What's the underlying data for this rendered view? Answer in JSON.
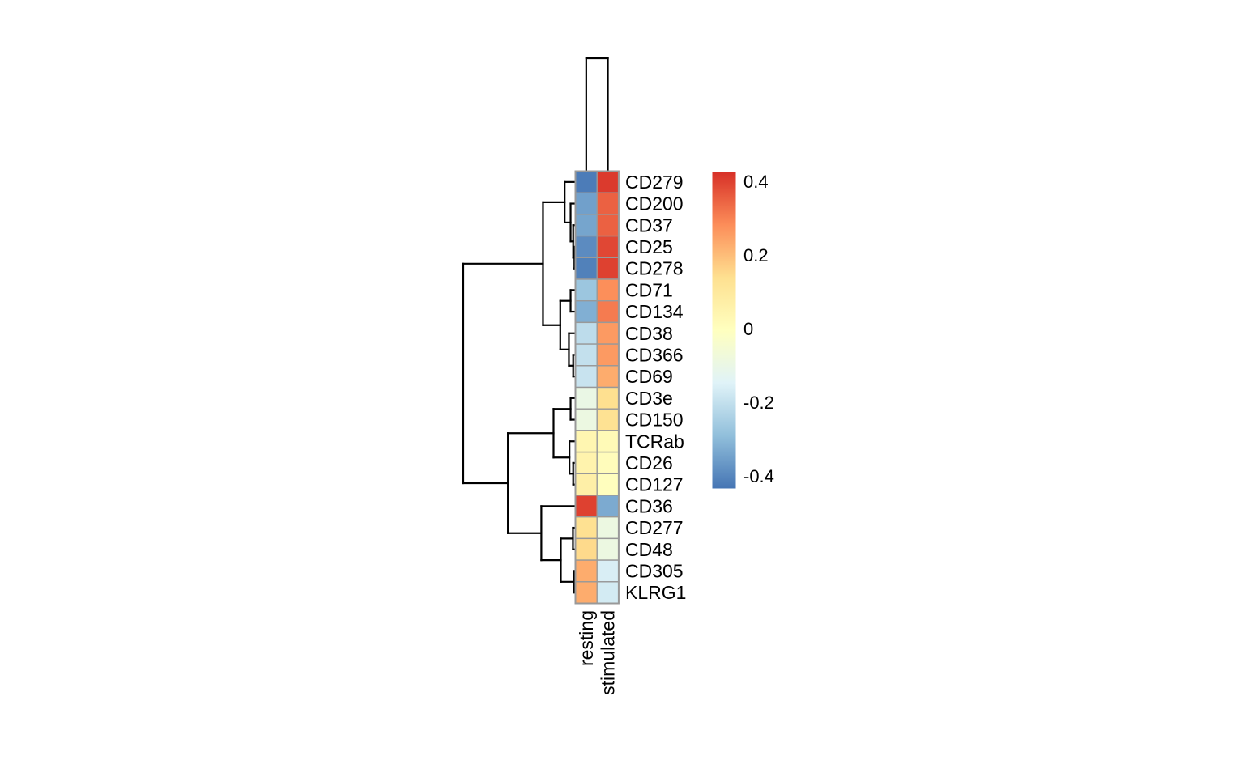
{
  "figure": {
    "background": "#ffffff",
    "description": "Clustered heatmap (pheatmap style) with row and column dendrograms and a vertical color legend"
  },
  "chart_data": {
    "type": "heatmap",
    "title": "",
    "columns": [
      "resting",
      "stimulated"
    ],
    "rows": [
      {
        "label": "CD279",
        "values": [
          -0.42,
          0.41
        ]
      },
      {
        "label": "CD200",
        "values": [
          -0.35,
          0.35
        ]
      },
      {
        "label": "CD37",
        "values": [
          -0.34,
          0.35
        ]
      },
      {
        "label": "CD25",
        "values": [
          -0.39,
          0.39
        ]
      },
      {
        "label": "CD278",
        "values": [
          -0.41,
          0.4
        ]
      },
      {
        "label": "CD71",
        "values": [
          -0.27,
          0.28
        ]
      },
      {
        "label": "CD134",
        "values": [
          -0.32,
          0.31
        ]
      },
      {
        "label": "CD38",
        "values": [
          -0.21,
          0.26
        ]
      },
      {
        "label": "CD366",
        "values": [
          -0.2,
          0.26
        ]
      },
      {
        "label": "CD69",
        "values": [
          -0.19,
          0.23
        ]
      },
      {
        "label": "CD3e",
        "values": [
          -0.1,
          0.14
        ]
      },
      {
        "label": "CD150",
        "values": [
          -0.09,
          0.13
        ]
      },
      {
        "label": "TCRab",
        "values": [
          0.04,
          0.02
        ]
      },
      {
        "label": "CD26",
        "values": [
          0.05,
          0.01
        ]
      },
      {
        "label": "CD127",
        "values": [
          0.07,
          0.0
        ]
      },
      {
        "label": "CD36",
        "values": [
          0.4,
          -0.33
        ]
      },
      {
        "label": "CD277",
        "values": [
          0.135,
          -0.09
        ]
      },
      {
        "label": "CD48",
        "values": [
          0.15,
          -0.09
        ]
      },
      {
        "label": "CD305",
        "values": [
          0.23,
          -0.16
        ]
      },
      {
        "label": "KLRG1",
        "values": [
          0.23,
          -0.17
        ]
      }
    ],
    "colormap": {
      "name": "RdYlBu-reversed",
      "colors": [
        "#4575B4",
        "#91BFDB",
        "#E0F3F8",
        "#FFFFBF",
        "#FEE090",
        "#FC8D59",
        "#D73027"
      ],
      "domain": [
        -0.433,
        0.426
      ]
    },
    "legend": {
      "position": "right",
      "ticks": [
        {
          "value": 0.4,
          "label": "0.4"
        },
        {
          "value": 0.2,
          "label": "0.2"
        },
        {
          "value": 0.0,
          "label": "0"
        },
        {
          "value": -0.2,
          "label": "-0.2"
        },
        {
          "value": -0.4,
          "label": "-0.4"
        }
      ]
    },
    "cell_border_color": "#999999",
    "dendrogram_color": "#000000",
    "row_dendrogram": {
      "h": 1.0,
      "children": [
        {
          "h": 0.289,
          "children": [
            {
              "h": 0.096,
              "children": [
                {
                  "leaf": "CD279"
                },
                {
                  "h": 0.043,
                  "children": [
                    {
                      "leaf": "CD200"
                    },
                    {
                      "h": 0.02,
                      "children": [
                        {
                          "leaf": "CD37"
                        },
                        {
                          "h": 0.009,
                          "children": [
                            {
                              "leaf": "CD25"
                            },
                            {
                              "leaf": "CD278"
                            }
                          ]
                        }
                      ]
                    }
                  ]
                }
              ]
            },
            {
              "h": 0.135,
              "children": [
                {
                  "h": 0.043,
                  "children": [
                    {
                      "leaf": "CD71"
                    },
                    {
                      "leaf": "CD134"
                    }
                  ]
                },
                {
                  "h": 0.058,
                  "children": [
                    {
                      "leaf": "CD38"
                    },
                    {
                      "h": 0.02,
                      "children": [
                        {
                          "leaf": "CD366"
                        },
                        {
                          "leaf": "CD69"
                        }
                      ]
                    }
                  ]
                }
              ]
            }
          ]
        },
        {
          "h": 0.602,
          "children": [
            {
              "h": 0.195,
              "children": [
                {
                  "h": 0.043,
                  "children": [
                    {
                      "leaf": "CD3e"
                    },
                    {
                      "leaf": "CD150"
                    }
                  ]
                },
                {
                  "h": 0.053,
                  "children": [
                    {
                      "leaf": "TCRab"
                    },
                    {
                      "h": 0.02,
                      "children": [
                        {
                          "leaf": "CD26"
                        },
                        {
                          "leaf": "CD127"
                        }
                      ]
                    }
                  ]
                }
              ]
            },
            {
              "h": 0.304,
              "children": [
                {
                  "leaf": "CD36"
                },
                {
                  "h": 0.13,
                  "children": [
                    {
                      "h": 0.022,
                      "children": [
                        {
                          "leaf": "CD277"
                        },
                        {
                          "leaf": "CD48"
                        }
                      ]
                    },
                    {
                      "h": 0.011,
                      "children": [
                        {
                          "leaf": "CD305"
                        },
                        {
                          "leaf": "KLRG1"
                        }
                      ]
                    }
                  ]
                }
              ]
            }
          ]
        }
      ]
    },
    "column_dendrogram": {
      "h": 1.0,
      "children": [
        {
          "leaf": "resting"
        },
        {
          "leaf": "stimulated"
        }
      ]
    }
  }
}
